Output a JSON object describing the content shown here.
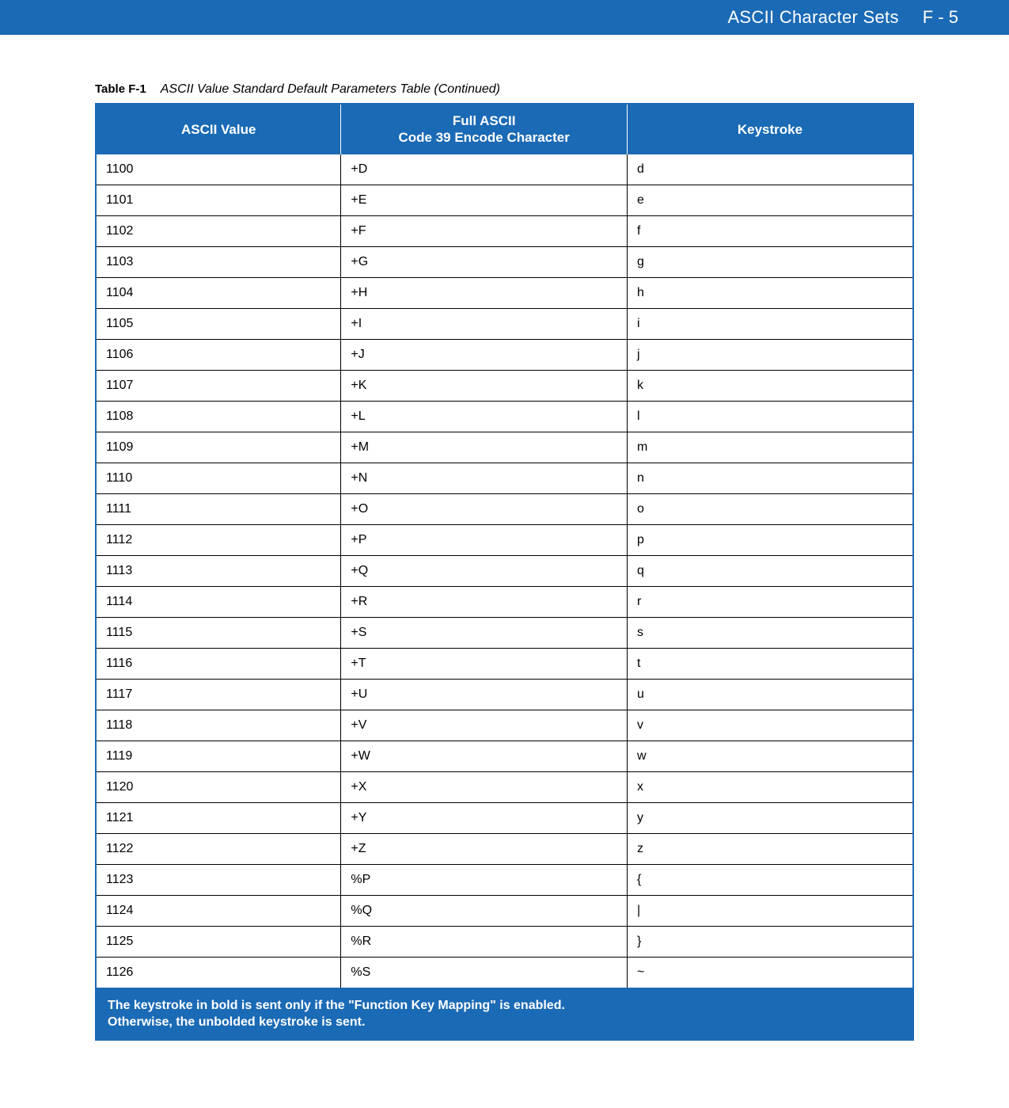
{
  "header": {
    "title": "ASCII Character Sets",
    "page_num": "F - 5",
    "band_color": "#1b6ab5",
    "text_color": "#ffffff"
  },
  "caption": {
    "label": "Table F-1",
    "text": "ASCII Value Standard Default Parameters Table (Continued)"
  },
  "table": {
    "header_bg": "#1b6ab5",
    "header_fg": "#ffffff",
    "border_color": "#000000",
    "columns": [
      {
        "key": "ascii",
        "label_line1": "ASCII Value",
        "label_line2": ""
      },
      {
        "key": "encode",
        "label_line1": "Full ASCII",
        "label_line2": "Code 39 Encode Character"
      },
      {
        "key": "keystroke",
        "label_line1": "Keystroke",
        "label_line2": ""
      }
    ],
    "rows": [
      {
        "ascii": "1100",
        "encode": "+D",
        "keystroke": "d"
      },
      {
        "ascii": "1101",
        "encode": "+E",
        "keystroke": "e"
      },
      {
        "ascii": "1102",
        "encode": "+F",
        "keystroke": "f"
      },
      {
        "ascii": "1103",
        "encode": "+G",
        "keystroke": "g"
      },
      {
        "ascii": "1104",
        "encode": "+H",
        "keystroke": "h"
      },
      {
        "ascii": "1105",
        "encode": "+I",
        "keystroke": "i"
      },
      {
        "ascii": "1106",
        "encode": "+J",
        "keystroke": "j"
      },
      {
        "ascii": "1107",
        "encode": "+K",
        "keystroke": "k"
      },
      {
        "ascii": "1108",
        "encode": "+L",
        "keystroke": "l"
      },
      {
        "ascii": "1109",
        "encode": "+M",
        "keystroke": "m"
      },
      {
        "ascii": "1110",
        "encode": "+N",
        "keystroke": "n"
      },
      {
        "ascii": "1111",
        "encode": "+O",
        "keystroke": "o"
      },
      {
        "ascii": "1112",
        "encode": "+P",
        "keystroke": "p"
      },
      {
        "ascii": "1113",
        "encode": "+Q",
        "keystroke": "q"
      },
      {
        "ascii": "1114",
        "encode": "+R",
        "keystroke": "r"
      },
      {
        "ascii": "1115",
        "encode": "+S",
        "keystroke": "s"
      },
      {
        "ascii": "1116",
        "encode": "+T",
        "keystroke": "t"
      },
      {
        "ascii": "1117",
        "encode": "+U",
        "keystroke": "u"
      },
      {
        "ascii": "1118",
        "encode": "+V",
        "keystroke": "v"
      },
      {
        "ascii": "1119",
        "encode": "+W",
        "keystroke": "w"
      },
      {
        "ascii": "1120",
        "encode": "+X",
        "keystroke": "x"
      },
      {
        "ascii": "1121",
        "encode": "+Y",
        "keystroke": "y"
      },
      {
        "ascii": "1122",
        "encode": "+Z",
        "keystroke": "z"
      },
      {
        "ascii": "1123",
        "encode": "%P",
        "keystroke": "{"
      },
      {
        "ascii": "1124",
        "encode": "%Q",
        "keystroke": "|"
      },
      {
        "ascii": "1125",
        "encode": "%R",
        "keystroke": "}"
      },
      {
        "ascii": "1126",
        "encode": "%S",
        "keystroke": "~"
      }
    ]
  },
  "footer_note": {
    "line1": "The keystroke in bold is sent only if the \"Function Key Mapping\" is enabled.",
    "line2": "Otherwise, the unbolded keystroke is sent."
  }
}
